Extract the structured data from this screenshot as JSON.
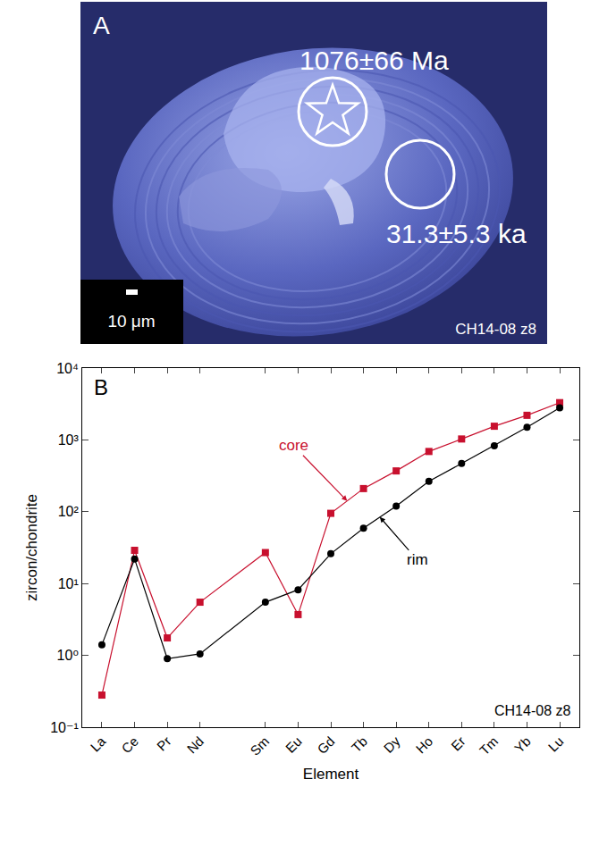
{
  "panel_a": {
    "label": "A",
    "core_age": "1076±66 Ma",
    "rim_age": "31.3±5.3 ka",
    "scale_bar": "10 μm",
    "sample": "CH14-08 z8"
  },
  "chart_data": {
    "type": "line",
    "panel_label": "B",
    "x_label": "Element",
    "y_label": "zircon/chondrite",
    "categories": [
      "La",
      "Ce",
      "Pr",
      "Nd",
      null,
      "Sm",
      "Eu",
      "Gd",
      "Tb",
      "Dy",
      "Ho",
      "Er",
      "Tm",
      "Yb",
      "Lu"
    ],
    "series": [
      {
        "name": "core",
        "color": "#c8102e",
        "marker": "square",
        "values": [
          0.28,
          29,
          1.75,
          5.5,
          null,
          27,
          3.7,
          95,
          210,
          370,
          690,
          1030,
          1550,
          2200,
          3300
        ]
      },
      {
        "name": "rim",
        "color": "#000000",
        "marker": "circle",
        "values": [
          1.4,
          22,
          0.9,
          1.05,
          null,
          5.5,
          8.2,
          26,
          59,
          120,
          265,
          470,
          830,
          1500,
          2800
        ]
      }
    ],
    "log": "y",
    "ylim": [
      0.1,
      10000
    ],
    "yticks": [
      {
        "value": 0.1,
        "label": "10⁻¹"
      },
      {
        "value": 1,
        "label": "10⁰"
      },
      {
        "value": 10,
        "label": "10¹"
      },
      {
        "value": 100,
        "label": "10²"
      },
      {
        "value": 1000,
        "label": "10³"
      },
      {
        "value": 10000,
        "label": "10⁴"
      }
    ],
    "grid": false,
    "annotations": [
      "CH14-08 z8"
    ]
  }
}
